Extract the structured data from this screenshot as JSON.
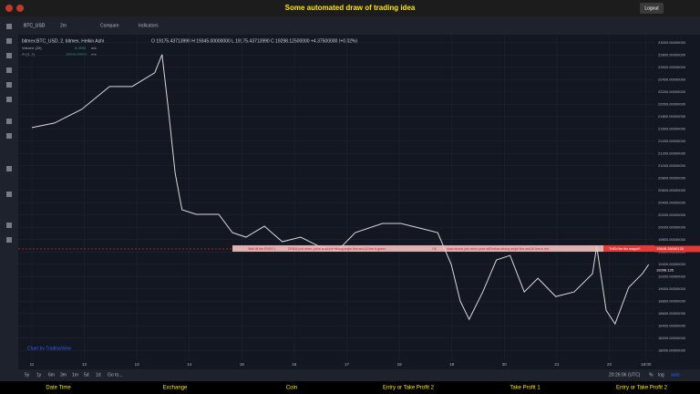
{
  "header": {
    "title": "Some automated draw of trading idea",
    "logout": "Logout"
  },
  "toolbar": {
    "symbol": "BTC_USD",
    "interval": "2m",
    "compare": "Compare",
    "indicators": "Indicators"
  },
  "legend": {
    "series": "bitmex:BTC_USD, 2, bitmex, Heikin Ashi",
    "ohlc": "O 19175.43713990  H 19345.00000000  L 19175.43713990  C 19298.12500000  +4.37500000 (+0.02%)",
    "volume": [
      "Volume (20)",
      "5.2838",
      "n/a"
    ],
    "ai": [
      "AI (1, 1)",
      "19340.00000",
      "n/a"
    ]
  },
  "chart_data": {
    "type": "line",
    "x": [
      11.0,
      11.43,
      11.95,
      12.48,
      12.91,
      13.34,
      13.48,
      13.6,
      13.73,
      13.86,
      14.13,
      14.56,
      14.82,
      15.08,
      15.43,
      15.77,
      16.12,
      16.47,
      16.82,
      17.16,
      17.68,
      18.03,
      18.38,
      18.73,
      18.99,
      19.16,
      19.33,
      19.59,
      19.85,
      20.11,
      20.38,
      20.64,
      20.98,
      21.33,
      21.68,
      21.76,
      21.94,
      22.11,
      22.37,
      22.63,
      22.75
    ],
    "series": [
      {
        "name": "BTC_USD",
        "color": "#d9d9d9",
        "values": [
          21620,
          21694,
          21917,
          22288,
          22288,
          22510,
          22807,
          21917,
          20878,
          20285,
          20211,
          20211,
          19914,
          19840,
          20018,
          19766,
          19840,
          19691,
          19617,
          19914,
          20062,
          20062,
          19988,
          19914,
          19395,
          18802,
          18505,
          18950,
          19469,
          19543,
          18950,
          19172,
          18875,
          18950,
          19246,
          19691,
          18653,
          18430,
          19024,
          19246,
          19395
        ]
      }
    ],
    "xlim": [
      10.74,
      22.86
    ],
    "ylim": [
      17840,
      23130
    ],
    "xticks": [
      11,
      12,
      13,
      14,
      15,
      16,
      17,
      18,
      19,
      20,
      21,
      22,
      {
        "value": 22.7,
        "label": "18:00"
      }
    ],
    "yticks": [
      {
        "value": 23000,
        "label": "23000.00000000"
      },
      {
        "value": 22800,
        "label": "22800.00000000"
      },
      {
        "value": 22600,
        "label": "22600.00000000"
      },
      {
        "value": 22400,
        "label": "22400.00000000"
      },
      {
        "value": 22200,
        "label": "22200.00000000"
      },
      {
        "value": 22000,
        "label": "22000.00000000"
      },
      {
        "value": 21800,
        "label": "21800.00000000"
      },
      {
        "value": 21600,
        "label": "21600.00000000"
      },
      {
        "value": 21400,
        "label": "21400.00000000"
      },
      {
        "value": 21200,
        "label": "21200.00000000"
      },
      {
        "value": 21000,
        "label": "21000.00000000"
      },
      {
        "value": 20800,
        "label": "20800.00000000"
      },
      {
        "value": 20600,
        "label": "20600.00000000"
      },
      {
        "value": 20400,
        "label": "20400.00000000"
      },
      {
        "value": 20200,
        "label": "20200.00000000"
      },
      {
        "value": 20000,
        "label": "20000.00000000"
      },
      {
        "value": 19800,
        "label": "19800.00000000"
      },
      {
        "value": 19600,
        "label": "19600.00000000"
      },
      {
        "value": 19400,
        "label": "19400.00000000"
      },
      {
        "value": 19200,
        "label": "19200.00000000"
      },
      {
        "value": 19000,
        "label": "19000.00000000"
      },
      {
        "value": 18800,
        "label": "18800.00000000"
      },
      {
        "value": 18600,
        "label": "18600.00000000"
      },
      {
        "value": 18400,
        "label": "18400.00000000"
      },
      {
        "value": 18200,
        "label": "18200.00000000"
      },
      {
        "value": 18000,
        "label": "18000.00000000"
      }
    ],
    "grid": true,
    "price_line": {
      "value": 19648.35000126,
      "label": "19648.35000126"
    },
    "last_price": {
      "value": 19298.125,
      "label": "19298.125"
    }
  },
  "banner": [
    "Wait till the ENDS 1",
    "DRAW just when: price is above strong angle line and AI line is green",
    "OK",
    "draw shorts just when price still below strong angle line and AI line is red",
    "THEN fire the magic!!!"
  ],
  "watermark": "Chart by TradingView",
  "bottom_toolbar": {
    "ranges": [
      "5y",
      "1y",
      "6m",
      "3m",
      "1m",
      "5d",
      "1d"
    ],
    "goto": "Go to...",
    "time": "20:26:06 (UTC)",
    "percent": "%",
    "log": "log",
    "auto": "auto"
  },
  "footer": [
    "Date Time",
    "Exchange",
    "Coin",
    "Entry or Take Profit 2",
    "Take Profit 1",
    "Entry or Take Profit 2"
  ]
}
